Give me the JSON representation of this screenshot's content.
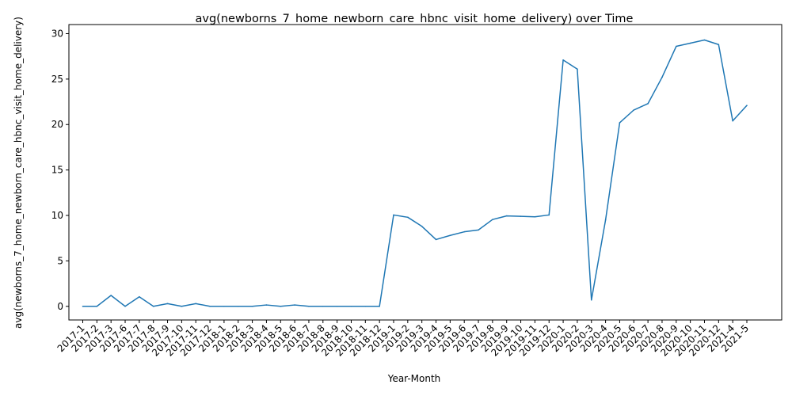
{
  "chart_data": {
    "type": "line",
    "title": "avg(newborns_7_home_newborn_care_hbnc_visit_home_delivery) over Time",
    "xlabel": "Year-Month",
    "ylabel": "avg(newborns_7_home_newborn_care_hbnc_visit_home_delivery)",
    "ylim": [
      -1.5,
      31
    ],
    "yticks": [
      0,
      5,
      10,
      15,
      20,
      25,
      30
    ],
    "grid": false,
    "legend": "none",
    "line_color": "#1f77b4",
    "x": [
      "2017-1",
      "2017-2",
      "2017-3",
      "2017-6",
      "2017-7",
      "2017-8",
      "2017-9",
      "2017-10",
      "2017-11",
      "2017-12",
      "2018-1",
      "2018-2",
      "2018-3",
      "2018-4",
      "2018-5",
      "2018-6",
      "2018-7",
      "2018-8",
      "2018-9",
      "2018-10",
      "2018-11",
      "2018-12",
      "2019-1",
      "2019-2",
      "2019-3",
      "2019-4",
      "2019-5",
      "2019-6",
      "2019-7",
      "2019-8",
      "2019-9",
      "2019-10",
      "2019-11",
      "2019-12",
      "2020-1",
      "2020-2",
      "2020-3",
      "2020-4",
      "2020-5",
      "2020-6",
      "2020-7",
      "2020-8",
      "2020-9",
      "2020-10",
      "2020-11",
      "2020-12",
      "2021-4",
      "2021-5"
    ],
    "series": [
      {
        "values": [
          0,
          0,
          1.2,
          0,
          1.05,
          0,
          0.3,
          0,
          0.3,
          0,
          0,
          0,
          0,
          0.15,
          0,
          0.15,
          0,
          0,
          0,
          0,
          0,
          0,
          10.05,
          9.8,
          8.8,
          7.35,
          7.8,
          8.2,
          8.4,
          9.55,
          9.95,
          9.9,
          9.85,
          10.05,
          27.1,
          26.1,
          0.7,
          9.5,
          20.2,
          21.6,
          22.3,
          25.2,
          28.6,
          28.95,
          29.3,
          28.8,
          20.4,
          22.1
        ]
      }
    ]
  }
}
